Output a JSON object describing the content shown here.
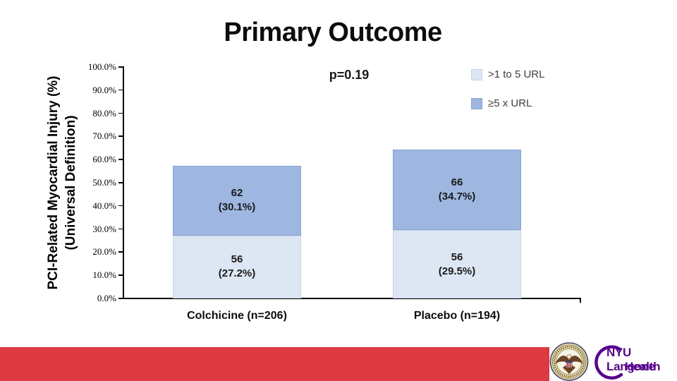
{
  "slide": {
    "title": "Primary Outcome"
  },
  "chart_data": {
    "type": "bar",
    "stacked": true,
    "title": "Primary Outcome",
    "annotation": "p=0.19",
    "ylabel_line1": "PCI-Related Myocardial Injury (%)",
    "ylabel_line2": "(Universal Definition)",
    "ylim": [
      0,
      100
    ],
    "ytick_labels": [
      "100.0%",
      "90.0%",
      "80.0%",
      "70.0%",
      "60.0%",
      "50.0%",
      "40.0%",
      "30.0%",
      "20.0%",
      "10.0%",
      "0.0%"
    ],
    "categories": [
      "Colchicine (n=206)",
      "Placebo (n=194)"
    ],
    "series": [
      {
        "name": ">1 to 5 URL",
        "color": "#dde6f3",
        "border_color": "#c7d4e8",
        "counts": [
          56,
          56
        ],
        "pct": [
          27.2,
          29.5
        ]
      },
      {
        "name": "≥5 x URL",
        "color": "#9db7e0",
        "border_color": "#88a4cf",
        "counts": [
          62,
          66
        ],
        "pct": [
          30.1,
          34.7
        ]
      }
    ],
    "legend_position": "top-right",
    "grid": false
  },
  "footer": {
    "banner_color": "#dd3a43",
    "nyu_logo": {
      "line1": "NYU Langone",
      "line2": "Health",
      "color": "#57068c"
    }
  }
}
